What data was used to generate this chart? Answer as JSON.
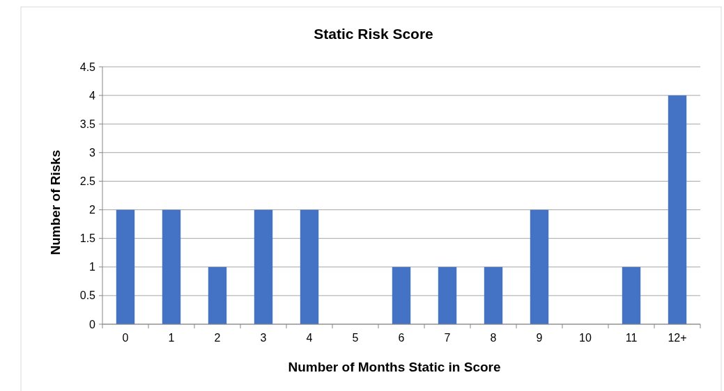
{
  "chart_data": {
    "type": "bar",
    "title": "Static Risk Score",
    "xlabel": "Number of Months Static in Score",
    "ylabel": "Number of Risks",
    "categories": [
      "0",
      "1",
      "2",
      "3",
      "4",
      "5",
      "6",
      "7",
      "8",
      "9",
      "10",
      "11",
      "12+"
    ],
    "values": [
      2,
      2,
      1,
      2,
      2,
      0,
      1,
      1,
      1,
      2,
      0,
      1,
      4
    ],
    "color": "#4472c4",
    "ylim": [
      0,
      4.5
    ],
    "yticks": [
      0,
      0.5,
      1,
      1.5,
      2,
      2.5,
      3,
      3.5,
      4,
      4.5
    ],
    "grid": "y"
  }
}
